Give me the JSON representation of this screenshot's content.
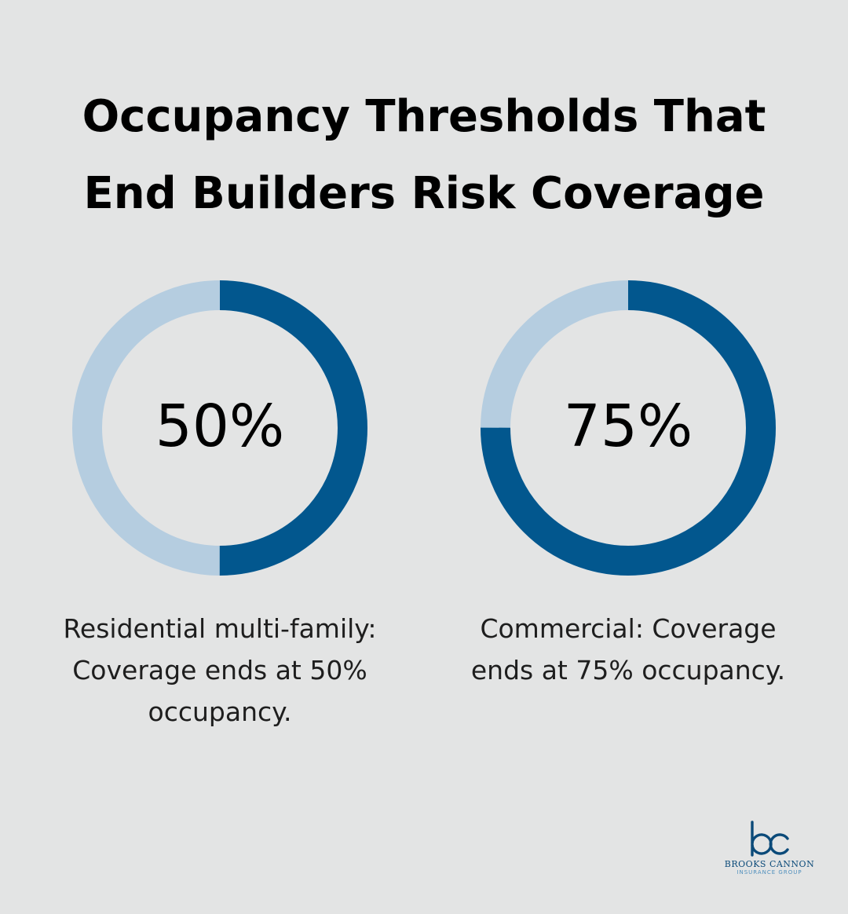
{
  "title": {
    "line1": "Occupancy Thresholds That",
    "line2": "End Builders Risk Coverage"
  },
  "colors": {
    "background": "#e3e4e4",
    "fill": "#02578e",
    "track": "#b5cde0"
  },
  "chart_data": [
    {
      "type": "pie",
      "style": "donut",
      "value": 50,
      "max": 100,
      "center_label": "50%",
      "caption": "Residential multi-family: Coverage ends at 50% occupancy.",
      "caption_lines": [
        "Residential multi-family:",
        "Coverage ends at 50%",
        "occupancy."
      ]
    },
    {
      "type": "pie",
      "style": "donut",
      "value": 75,
      "max": 100,
      "center_label": "75%",
      "caption": "Commercial: Coverage ends at 75% occupancy.",
      "caption_lines": [
        "Commercial: Coverage",
        "ends at 75% occupancy."
      ]
    }
  ],
  "logo": {
    "name": "BROOKS CANNON",
    "subtitle": "INSURANCE GROUP"
  }
}
